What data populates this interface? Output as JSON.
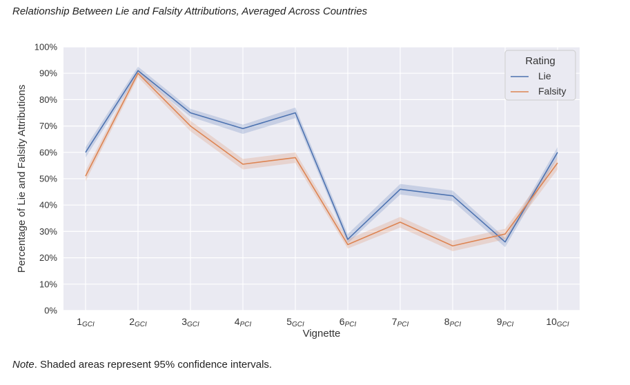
{
  "figure": {
    "title": "Relationship Between Lie and Falsity Attributions, Averaged Across Countries",
    "note_label": "Note",
    "note_text": ". Shaded areas represent 95% confidence intervals."
  },
  "chart_data": {
    "type": "line",
    "xlabel": "Vignette",
    "ylabel": "Percentage of Lie and Falsity Attributions",
    "ylim": [
      0,
      100
    ],
    "yticks": [
      "0%",
      "10%",
      "20%",
      "30%",
      "40%",
      "50%",
      "60%",
      "70%",
      "80%",
      "90%",
      "100%"
    ],
    "categories": [
      {
        "num": "1",
        "sub": "GCI"
      },
      {
        "num": "2",
        "sub": "GCI"
      },
      {
        "num": "3",
        "sub": "GCI"
      },
      {
        "num": "4",
        "sub": "PCI"
      },
      {
        "num": "5",
        "sub": "GCI"
      },
      {
        "num": "6",
        "sub": "PCI"
      },
      {
        "num": "7",
        "sub": "PCI"
      },
      {
        "num": "8",
        "sub": "PCI"
      },
      {
        "num": "9",
        "sub": "PCI"
      },
      {
        "num": "10",
        "sub": "GCI"
      }
    ],
    "legend": {
      "title": "Rating",
      "position": "top-right"
    },
    "grid": true,
    "series": [
      {
        "name": "Lie",
        "color": "#4c72b0",
        "values": [
          60,
          91,
          75,
          69,
          75,
          27,
          46,
          43.5,
          26,
          60
        ],
        "ci_low": [
          58,
          89.5,
          73.5,
          67,
          73,
          25.5,
          44,
          41.5,
          24,
          58
        ],
        "ci_high": [
          62,
          92.5,
          76.5,
          70.5,
          77,
          29,
          48,
          45.5,
          27.5,
          62
        ]
      },
      {
        "name": "Falsity",
        "color": "#dd8452",
        "values": [
          51,
          90,
          70,
          55.5,
          58,
          25,
          33.5,
          24.5,
          29,
          56
        ],
        "ci_low": [
          49,
          88.5,
          68,
          53.5,
          56,
          23.5,
          31.5,
          22.5,
          27,
          53.5
        ],
        "ci_high": [
          53,
          91.5,
          72,
          57.5,
          60,
          27,
          35.5,
          26.5,
          31,
          58
        ]
      }
    ]
  }
}
